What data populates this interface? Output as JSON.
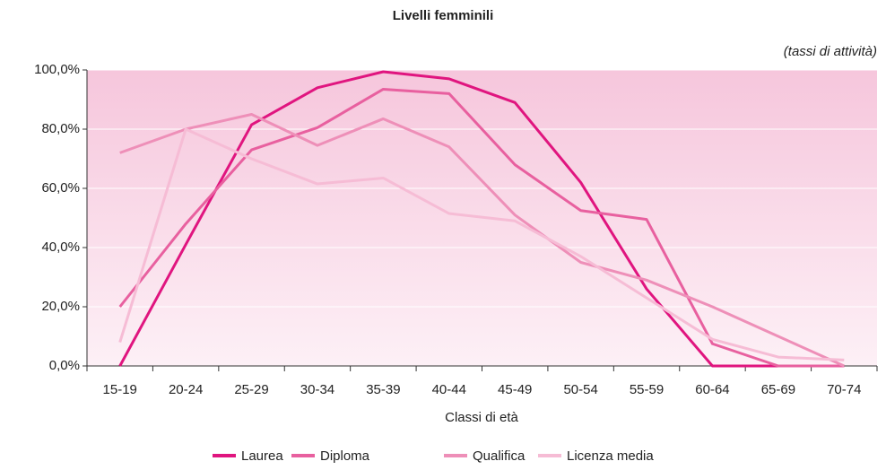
{
  "chart_data": {
    "type": "line",
    "title": "Livelli femminili",
    "subtitle": "(tassi di attività)",
    "x_label": "Classi di età",
    "categories": [
      "15-19",
      "20-24",
      "25-29",
      "30-34",
      "35-39",
      "40-44",
      "45-49",
      "50-54",
      "55-59",
      "60-64",
      "65-69",
      "70-74"
    ],
    "series": [
      {
        "name": "Laurea",
        "color": "#e0157f",
        "values": [
          0,
          41,
          81.5,
          94,
          99.4,
          97,
          89,
          62,
          26,
          0,
          0,
          0
        ]
      },
      {
        "name": "Diploma",
        "color": "#e8609f",
        "values": [
          20,
          48,
          73,
          80.5,
          93.5,
          92,
          68,
          52.5,
          49.5,
          7.5,
          0,
          0
        ]
      },
      {
        "name": "Qualifica",
        "color": "#ee8fb8",
        "values": [
          72,
          80,
          85,
          74.5,
          83.5,
          74,
          51,
          35,
          29,
          20,
          10,
          0
        ]
      },
      {
        "name": "Licenza media",
        "color": "#f6bcd5",
        "values": [
          8,
          80,
          70,
          61.5,
          63.5,
          51.5,
          49,
          37,
          23,
          9,
          3,
          2
        ]
      }
    ],
    "ylim": [
      0,
      100
    ],
    "yticks": [
      {
        "value": 0,
        "label": "0,0%"
      },
      {
        "value": 20,
        "label": "20,0%"
      },
      {
        "value": 40,
        "label": "40,0%"
      },
      {
        "value": 60,
        "label": "60,0%"
      },
      {
        "value": 80,
        "label": "80,0%"
      },
      {
        "value": 100,
        "label": "100,0%"
      }
    ],
    "grid": true,
    "legend": "bottom"
  }
}
